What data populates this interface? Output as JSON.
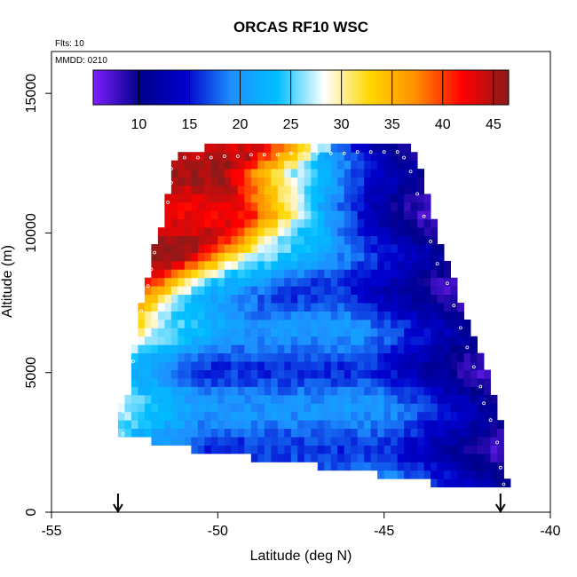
{
  "chart_data": {
    "type": "heatmap",
    "title": "ORCAS RF10 WSC",
    "flights_label": "Flts: 10",
    "mmdd_label": "MMDD: 0210",
    "xlabel": "Latitude (deg N)",
    "ylabel": "Altitude (m)",
    "xlim": [
      -55,
      -40
    ],
    "ylim": [
      0,
      16500
    ],
    "x_ticks": [
      -55,
      -50,
      -45,
      -40
    ],
    "x_tick_labels": [
      "-55",
      "-50",
      "-45",
      "-40"
    ],
    "y_ticks": [
      0,
      5000,
      10000,
      15000
    ],
    "y_tick_labels": [
      "0",
      "5000",
      "10000",
      "15000"
    ],
    "colorbar": {
      "range": [
        5.5,
        46.5
      ],
      "ticks": [
        10,
        15,
        20,
        25,
        30,
        35,
        40,
        45
      ],
      "tick_labels": [
        "10",
        "15",
        "20",
        "25",
        "30",
        "35",
        "40",
        "45"
      ],
      "colors": [
        "#7f1fff",
        "#00008b",
        "#0000cd",
        "#1e90ff",
        "#00bfff",
        "#ffffff",
        "#ffd700",
        "#ff8c00",
        "#ff0000",
        "#8b1a1a"
      ]
    },
    "cell_width_deg": 0.2,
    "cell_height_m": 300,
    "domain": {
      "alt_range": [
        900,
        13000
      ],
      "left_edge": [
        [
          2700,
          -52.85
        ],
        [
          3700,
          -52.85
        ],
        [
          4000,
          -52.55
        ],
        [
          5300,
          -52.55
        ],
        [
          6000,
          -52.35
        ],
        [
          7000,
          -52.25
        ],
        [
          8000,
          -52.05
        ],
        [
          8800,
          -51.95
        ],
        [
          9700,
          -51.75
        ],
        [
          10200,
          -51.55
        ],
        [
          11000,
          -51.45
        ],
        [
          12000,
          -51.25
        ],
        [
          12700,
          -51.15
        ],
        [
          13000,
          -49.8
        ]
      ],
      "right_edge": [
        [
          900,
          -41.35
        ],
        [
          1200,
          -41.45
        ],
        [
          2800,
          -41.45
        ],
        [
          3700,
          -41.75
        ],
        [
          4800,
          -41.95
        ],
        [
          6000,
          -42.3
        ],
        [
          7500,
          -42.85
        ],
        [
          8500,
          -43.05
        ],
        [
          9500,
          -43.45
        ],
        [
          11000,
          -43.75
        ],
        [
          12500,
          -44.05
        ],
        [
          13000,
          -44.35
        ]
      ],
      "bottom_edge": [
        [
          -52.85,
          2700
        ],
        [
          -51.1,
          2300
        ],
        [
          -49.5,
          2000
        ],
        [
          -48.0,
          1800
        ],
        [
          -46.0,
          1500
        ],
        [
          -44.5,
          1200
        ],
        [
          -43.0,
          900
        ],
        [
          -41.35,
          900
        ]
      ]
    },
    "field_model": {
      "ridge_points": [
        [
          5000,
          -53.0
        ],
        [
          7000,
          -51.5
        ],
        [
          9000,
          -49.0
        ],
        [
          10500,
          -47.0
        ],
        [
          12000,
          -47.8
        ],
        [
          13000,
          -46.5
        ]
      ],
      "values_far_left_of_ridge": 44,
      "values_at_ridge": 25,
      "values_right_of_ridge": 18,
      "values_east_edge": 9
    },
    "flight_track_dots": [
      [
        -51.0,
        12700
      ],
      [
        -50.6,
        12700
      ],
      [
        -50.2,
        12700
      ],
      [
        -49.8,
        12750
      ],
      [
        -49.4,
        12750
      ],
      [
        -49.0,
        12800
      ],
      [
        -48.6,
        12800
      ],
      [
        -48.2,
        12800
      ],
      [
        -47.8,
        12850
      ],
      [
        -47.4,
        12850
      ],
      [
        -47.0,
        12850
      ],
      [
        -46.6,
        12850
      ],
      [
        -46.2,
        12850
      ],
      [
        -45.8,
        12900
      ],
      [
        -45.4,
        12900
      ],
      [
        -45.0,
        12900
      ],
      [
        -44.6,
        12900
      ],
      [
        -51.4,
        12300
      ],
      [
        -51.4,
        11800
      ],
      [
        -51.5,
        11100
      ],
      [
        -51.7,
        10300
      ],
      [
        -51.9,
        9300
      ],
      [
        -52.0,
        8700
      ],
      [
        -52.1,
        8100
      ],
      [
        -52.3,
        7200
      ],
      [
        -52.45,
        6300
      ],
      [
        -52.55,
        5400
      ],
      [
        -52.7,
        4600
      ],
      [
        -52.85,
        3600
      ],
      [
        -52.85,
        2800
      ],
      [
        -44.4,
        12700
      ],
      [
        -44.2,
        12200
      ],
      [
        -44.0,
        11400
      ],
      [
        -43.8,
        10600
      ],
      [
        -43.6,
        9700
      ],
      [
        -43.4,
        8900
      ],
      [
        -43.1,
        8200
      ],
      [
        -42.9,
        7400
      ],
      [
        -42.7,
        6600
      ],
      [
        -42.5,
        5900
      ],
      [
        -42.3,
        5200
      ],
      [
        -42.1,
        4500
      ],
      [
        -42.0,
        3900
      ],
      [
        -41.8,
        3300
      ],
      [
        -41.6,
        2500
      ],
      [
        -41.5,
        1600
      ],
      [
        -41.4,
        1000
      ]
    ],
    "arrows_at_latitude": [
      -53.0,
      -41.5
    ]
  }
}
